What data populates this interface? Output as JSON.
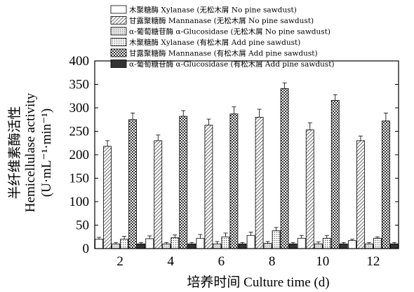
{
  "chart_data": {
    "type": "bar",
    "categories": [
      "2",
      "4",
      "6",
      "8",
      "10",
      "12"
    ],
    "xlabel": "培养时间 Culture time (d)",
    "ylabel_lines": [
      "半纤维素酶活性",
      "Hemicellulase activity",
      "(U·mL⁻¹·min⁻¹)"
    ],
    "ylim": [
      0,
      400
    ],
    "yticks": [
      "0",
      "50",
      "100",
      "150",
      "200",
      "250",
      "300",
      "350",
      "400"
    ],
    "grid": false,
    "legend_position": "top",
    "series": [
      {
        "name": "木聚糖酶 Xylanase (无松木屑 No pine sawdust)",
        "pattern": "white",
        "values": [
          20,
          21,
          22,
          28,
          22,
          17
        ],
        "errors": [
          4,
          6,
          8,
          7,
          6,
          3
        ]
      },
      {
        "name": "甘露聚糖酶 Mannanase (无松木屑 No pine sawdust)",
        "pattern": "diag",
        "values": [
          218,
          230,
          263,
          280,
          253,
          230
        ],
        "errors": [
          12,
          12,
          13,
          17,
          15,
          10
        ]
      },
      {
        "name": "α-葡萄糖苷酶 α-Glucosidase (无松木屑 No pine sawdust)",
        "pattern": "dots",
        "values": [
          10,
          10,
          10,
          11,
          10,
          10
        ],
        "errors": [
          3,
          3,
          5,
          4,
          4,
          3
        ]
      },
      {
        "name": "木聚糖酶 Xylanase (有松木屑 Add pine sawdust)",
        "pattern": "dotsdense",
        "values": [
          20,
          23,
          25,
          38,
          22,
          22
        ],
        "errors": [
          6,
          6,
          8,
          7,
          6,
          3
        ]
      },
      {
        "name": "甘露聚糖酶 Mannanase (有松木屑 Add pine sawdust)",
        "pattern": "checker",
        "values": [
          275,
          282,
          287,
          341,
          316,
          272
        ],
        "errors": [
          14,
          12,
          15,
          12,
          12,
          17
        ]
      },
      {
        "name": "α-葡萄糖苷酶 α-Glucosidase (有松木屑 Add pine sawdust)",
        "pattern": "black",
        "values": [
          10,
          10,
          10,
          10,
          10,
          10
        ],
        "errors": [
          3,
          3,
          3,
          3,
          3,
          3
        ]
      }
    ]
  }
}
